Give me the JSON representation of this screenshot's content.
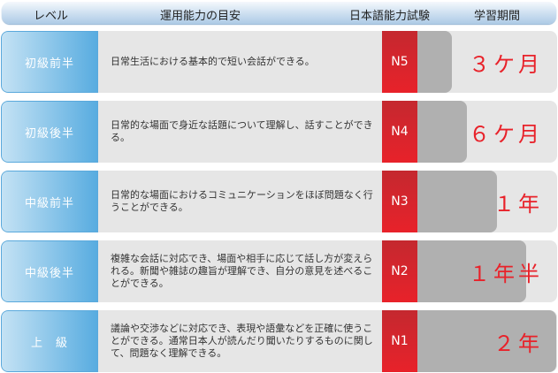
{
  "header": {
    "level": "レベル",
    "ability": "運用能力の目安",
    "jlpt": "日本語能力試験",
    "period": "学習期間"
  },
  "rows": [
    {
      "level": "初級前半",
      "desc": "日常生活における基本的で短い会話ができる。",
      "jlpt": "N5",
      "period": "３ケ月",
      "months": 3
    },
    {
      "level": "初級後半",
      "desc": "日常的な場面で身近な話題について理解し、話すことができる。",
      "jlpt": "N4",
      "period": "６ケ月",
      "months": 6
    },
    {
      "level": "中級前半",
      "desc": "日常的な場面におけるコミュニケーションをほぼ問題なく行うことができる。",
      "jlpt": "N3",
      "period": "１年",
      "months": 12
    },
    {
      "level": "中級後半",
      "desc": "複雑な会話に対応でき、場面や相手に応じて話し方が変えられる。新聞や雑誌の趣旨が理解でき、自分の意見を述べることができる。",
      "jlpt": "N2",
      "period": "１年半",
      "months": 18
    },
    {
      "level": "上　級",
      "desc": "議論や交渉などに対応でき、表現や語彙などを正確に使うことができる。通常日本人が読んだり聞いたりするものに関して、問題なく理解できる。",
      "jlpt": "N1",
      "period": "２年",
      "months": 24
    }
  ],
  "colors": {
    "accent_red": "#e8222a",
    "level_blue": "#58ace0",
    "bar_gray": "#b0b0b0"
  }
}
